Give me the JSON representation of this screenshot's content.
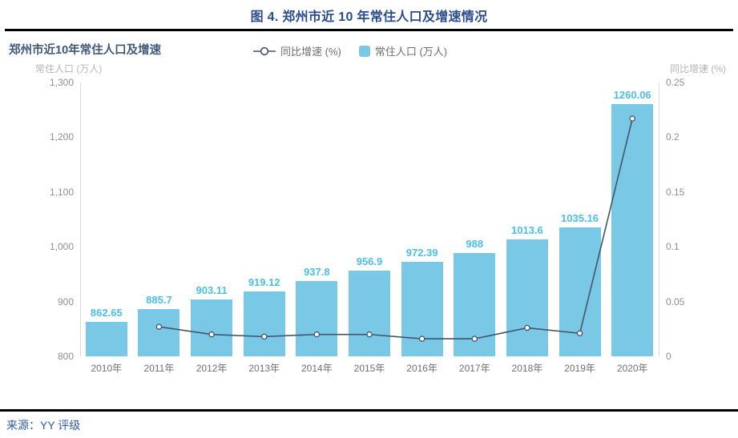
{
  "figure": {
    "title": "图 4. 郑州市近 10 年常住人口及增速情况"
  },
  "source": {
    "text": "来源：YY 评级"
  },
  "chart": {
    "title": "郑州市近10年常住人口及增速",
    "legend": {
      "line_label": "同比增速 (%)",
      "bar_label": "常住人口 (万人)"
    },
    "left_axis_title": "常住人口 (万人)",
    "right_axis_title": "同比增速 (%)"
  },
  "chart_data": {
    "type": "bar+line",
    "title": "郑州市近10年常住人口及增速",
    "categories": [
      "2010年",
      "2011年",
      "2012年",
      "2013年",
      "2014年",
      "2015年",
      "2016年",
      "2017年",
      "2018年",
      "2019年",
      "2020年"
    ],
    "series": [
      {
        "name": "常住人口 (万人)",
        "type": "bar",
        "axis": "left",
        "color": "#79c8e6",
        "values": [
          862.65,
          885.7,
          903.11,
          919.12,
          937.8,
          956.9,
          972.39,
          988,
          1013.6,
          1035.16,
          1260.06
        ],
        "data_labels": [
          "862.65",
          "885.7",
          "903.11",
          "919.12",
          "937.8",
          "956.9",
          "972.39",
          "988",
          "1013.6",
          "1035.16",
          "1260.06"
        ]
      },
      {
        "name": "同比增速 (%)",
        "type": "line",
        "axis": "right",
        "color": "#44546a",
        "marker": "open-circle",
        "values": [
          null,
          0.027,
          0.02,
          0.018,
          0.02,
          0.02,
          0.016,
          0.016,
          0.026,
          0.021,
          0.217
        ]
      }
    ],
    "left_axis": {
      "min": 800,
      "max": 1300,
      "step": 100,
      "tick_labels": [
        "1,300",
        "1,200",
        "1,100",
        "1,000",
        "900",
        "800"
      ]
    },
    "right_axis": {
      "min": 0,
      "max": 0.25,
      "step": 0.05,
      "tick_labels": [
        "0.25",
        "0.2",
        "0.15",
        "0.1",
        "0.05",
        "0"
      ]
    },
    "legend_position": "top",
    "grid": false
  },
  "colors": {
    "figure_title": "#2a4b8d",
    "chart_title": "#3f587c",
    "bar": "#79c8e6",
    "bar_label": "#4bbfe6",
    "line": "#44546a",
    "axis_line": "#d9d9d9",
    "ytick_text": "#8f8f8f",
    "xtick_text": "#6f6f6f",
    "axis_title_text": "#b5b5b5",
    "legend_text": "#6f6f6f",
    "source_text": "#2e5aa8",
    "rule": "#000000"
  }
}
